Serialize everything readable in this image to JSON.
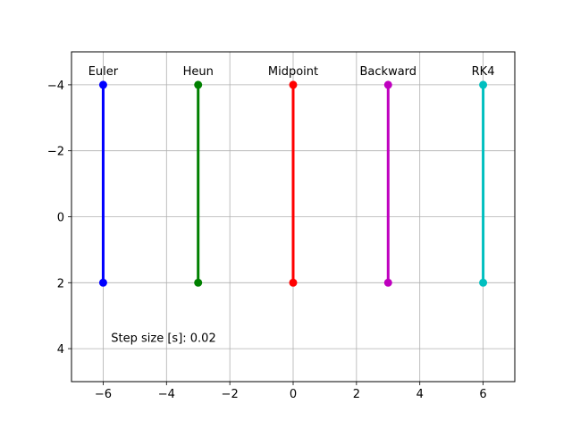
{
  "chart_data": {
    "type": "line",
    "xlim": [
      -7,
      7
    ],
    "ylim": [
      5,
      -5
    ],
    "y_inverted": true,
    "grid": true,
    "xticks": [
      -6,
      -4,
      -2,
      0,
      2,
      4,
      6
    ],
    "xtick_labels": [
      "−6",
      "−4",
      "−2",
      "0",
      "2",
      "4",
      "6"
    ],
    "yticks": [
      -4,
      -2,
      0,
      2,
      4
    ],
    "ytick_labels": [
      "−4",
      "−2",
      "0",
      "2",
      "4"
    ],
    "series": [
      {
        "name": "Euler",
        "color": "#0000ff",
        "x": [
          -6,
          -6
        ],
        "y": [
          -4,
          2
        ]
      },
      {
        "name": "Heun",
        "color": "#008000",
        "x": [
          -3,
          -3
        ],
        "y": [
          -4,
          2
        ]
      },
      {
        "name": "Midpoint",
        "color": "#ff0000",
        "x": [
          0,
          0
        ],
        "y": [
          -4,
          2
        ]
      },
      {
        "name": "Backward",
        "color": "#bf00bf",
        "x": [
          3,
          3
        ],
        "y": [
          -4,
          2
        ]
      },
      {
        "name": "RK4",
        "color": "#00bfbf",
        "x": [
          6,
          6
        ],
        "y": [
          -4,
          2
        ]
      }
    ],
    "annotation": "Step size [s]: 0.02"
  }
}
